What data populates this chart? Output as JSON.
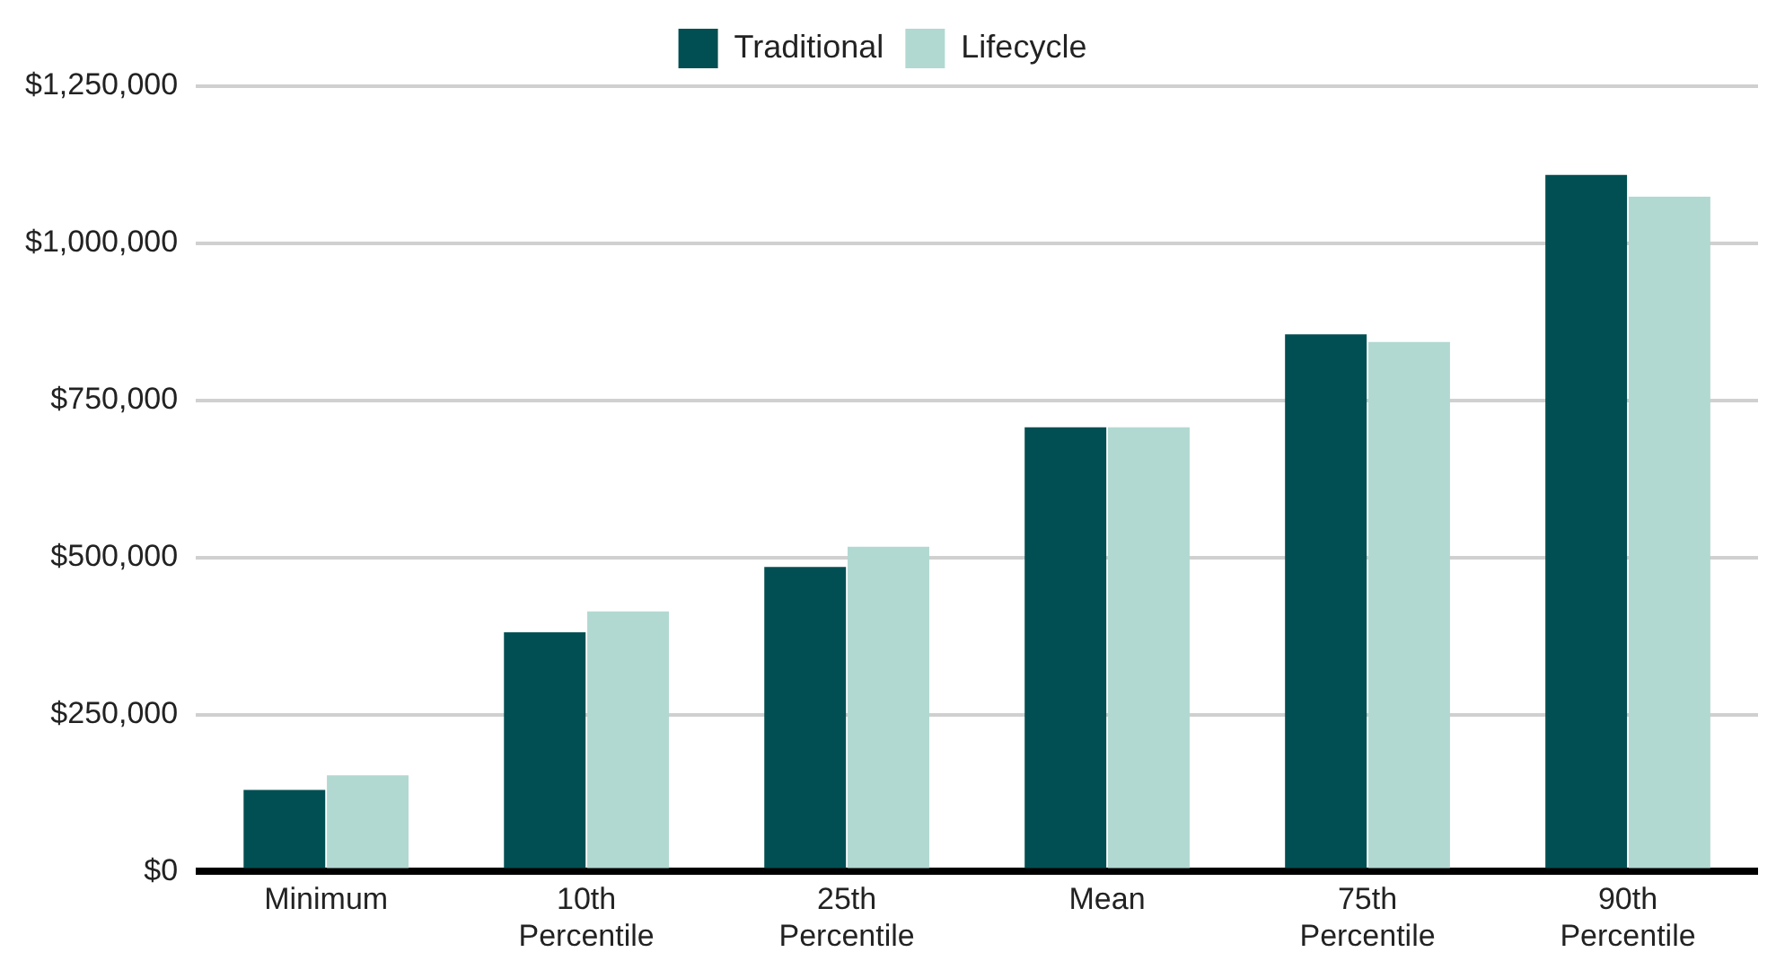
{
  "chart_data": {
    "type": "bar",
    "categories": [
      "Minimum",
      "10th Percentile",
      "25th Percentile",
      "Mean",
      "75th Percentile",
      "90th Percentile"
    ],
    "series": [
      {
        "name": "Traditional",
        "color": "#024f53",
        "values": [
          130000,
          381000,
          485000,
          707000,
          855000,
          1109000
        ]
      },
      {
        "name": "Lifecycle",
        "color": "#b1d9d1",
        "values": [
          153000,
          414000,
          517000,
          707000,
          843000,
          1074000
        ]
      }
    ],
    "ylim": [
      0,
      1250000
    ],
    "yticks": [
      {
        "value": 0,
        "label": "$0"
      },
      {
        "value": 250000,
        "label": "$250,000"
      },
      {
        "value": 500000,
        "label": "$500,000"
      },
      {
        "value": 750000,
        "label": "$750,000"
      },
      {
        "value": 1000000,
        "label": "$1,000,000"
      },
      {
        "value": 1250000,
        "label": "$1,250,000"
      }
    ],
    "grid": "y",
    "legend": "top"
  }
}
